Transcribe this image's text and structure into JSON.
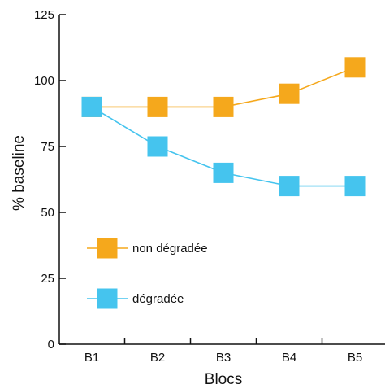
{
  "chart_data": {
    "type": "line",
    "title": "",
    "xlabel": "Blocs",
    "ylabel": "% baseline",
    "categories": [
      "B1",
      "B2",
      "B3",
      "B4",
      "B5"
    ],
    "ylim": [
      0,
      125
    ],
    "yticks": [
      0,
      25,
      50,
      75,
      100,
      125
    ],
    "grid": false,
    "legend_position": "lower-left",
    "series": [
      {
        "name": "non dégradée",
        "color": "#F5A81C",
        "marker": "square",
        "values": [
          90,
          90,
          90,
          95,
          105
        ]
      },
      {
        "name": "dégradée",
        "color": "#45C4EE",
        "marker": "square",
        "values": [
          90,
          75,
          65,
          60,
          60
        ]
      }
    ]
  }
}
